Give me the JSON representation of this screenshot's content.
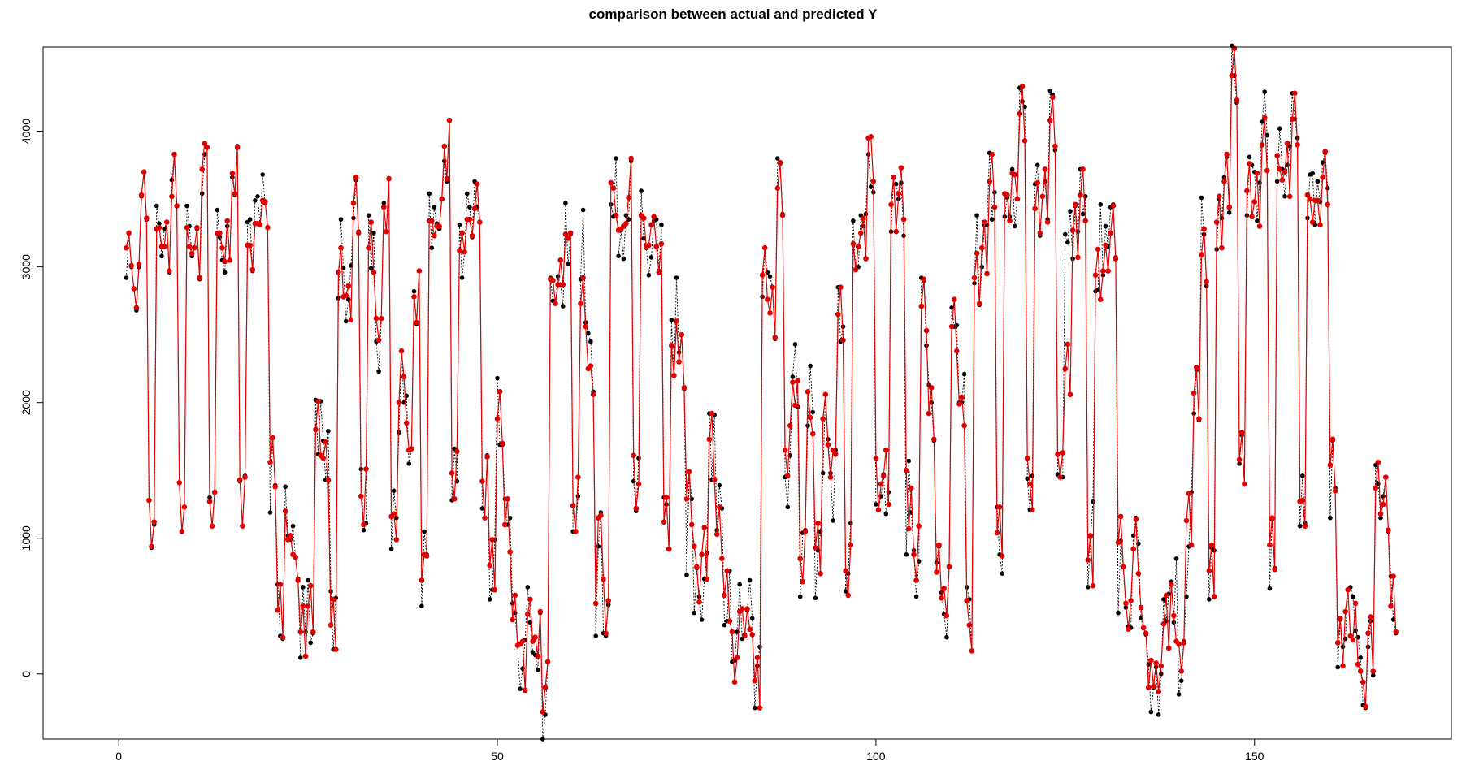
{
  "chart_data": {
    "type": "line",
    "title": "comparison between actual and predicted Y",
    "xlabel": "",
    "ylabel": "",
    "xlim": [
      -10,
      176
    ],
    "ylim": [
      -480,
      4620
    ],
    "x_ticks": [
      0,
      50,
      100,
      150
    ],
    "y_ticks": [
      0,
      1000,
      2000,
      3000,
      4000
    ],
    "grid": false,
    "legend": "none",
    "x_start": 1,
    "points_per_x": 3,
    "series": [
      {
        "style": "actual",
        "color": "#000000",
        "values": [
          2920,
          3250,
          3000,
          2840,
          2680,
          3000,
          3520,
          3700,
          3350,
          1280,
          930,
          1100,
          3450,
          3320,
          3080,
          3280,
          3330,
          2960,
          3640,
          3830,
          3450,
          1410,
          1050,
          1230,
          3450,
          3300,
          3080,
          3140,
          3280,
          2910,
          3540,
          3830,
          3880,
          1300,
          1090,
          1340,
          3420,
          3220,
          3050,
          2960,
          3300,
          3050,
          3660,
          3530,
          3890,
          1420,
          1090,
          1460,
          3330,
          3350,
          2970,
          3490,
          3520,
          3310,
          3680,
          3470,
          3290,
          1190,
          1740,
          1390,
          660,
          280,
          260,
          1380,
          1020,
          990,
          1090,
          860,
          700,
          120,
          640,
          310,
          690,
          230,
          300,
          2020,
          1620,
          2010,
          1720,
          1430,
          1790,
          610,
          180,
          560,
          2770,
          3350,
          2990,
          2600,
          2760,
          3010,
          3360,
          3640,
          3260,
          1510,
          1060,
          1110,
          3380,
          2990,
          3250,
          2450,
          2230,
          2620,
          3470,
          3260,
          3650,
          920,
          1350,
          1150,
          1780,
          2380,
          2000,
          2050,
          1550,
          1660,
          2820,
          2580,
          2970,
          500,
          1050,
          880,
          3540,
          3140,
          3440,
          3320,
          3280,
          3500,
          3780,
          3630,
          4080,
          1280,
          1660,
          1420,
          3310,
          2920,
          3110,
          3540,
          3440,
          3220,
          3630,
          3440,
          3330,
          1220,
          1150,
          1610,
          550,
          620,
          990,
          2180,
          1690,
          1690,
          1290,
          1100,
          1150,
          520,
          450,
          210,
          -110,
          40,
          250,
          640,
          380,
          160,
          140,
          30,
          450,
          -480,
          -300,
          90,
          2920,
          2750,
          2730,
          2930,
          2870,
          2710,
          3470,
          3020,
          3240,
          1050,
          1050,
          1310,
          2910,
          3420,
          2590,
          2510,
          2450,
          2080,
          280,
          940,
          1190,
          300,
          280,
          510,
          3460,
          3370,
          3800,
          3080,
          3270,
          3060,
          3380,
          3350,
          3780,
          1420,
          1200,
          1590,
          3560,
          3210,
          3140,
          2940,
          3070,
          3340,
          3350,
          2970,
          3310,
          1300,
          1250,
          920,
          2610,
          2200,
          2920,
          2370,
          2500,
          2100,
          730,
          1490,
          1290,
          450,
          780,
          570,
          400,
          700,
          890,
          1920,
          1430,
          1910,
          1060,
          1390,
          1220,
          360,
          390,
          760,
          90,
          100,
          310,
          660,
          260,
          290,
          470,
          690,
          410,
          -250,
          60,
          200,
          2780,
          3140,
          2960,
          2930,
          2850,
          2470,
          3800,
          3760,
          3390,
          1450,
          1230,
          1610,
          2190,
          2430,
          1970,
          570,
          1040,
          1060,
          1830,
          2270,
          1930,
          560,
          910,
          1050,
          1480,
          2060,
          1730,
          1480,
          1130,
          1650,
          2850,
          2450,
          2560,
          610,
          740,
          1110,
          3340,
          2980,
          3000,
          3380,
          3300,
          3390,
          3830,
          3590,
          3550,
          1250,
          1210,
          1310,
          1470,
          1180,
          1340,
          3260,
          3660,
          3610,
          3500,
          3620,
          3230,
          880,
          1570,
          1190,
          910,
          570,
          830,
          2920,
          2900,
          2420,
          2130,
          2000,
          1720,
          820,
          940,
          600,
          440,
          270,
          790,
          2700,
          2560,
          2570,
          2000,
          2000,
          2210,
          640,
          550,
          170,
          2880,
          3380,
          2720,
          3000,
          3310,
          3310,
          3840,
          3350,
          3550,
          1230,
          880,
          740,
          3370,
          3510,
          3370,
          3720,
          3300,
          3500,
          4320,
          4220,
          4180,
          1440,
          1210,
          1460,
          3610,
          3750,
          3230,
          3520,
          3630,
          3350,
          4300,
          4270,
          3860,
          1470,
          1450,
          1450,
          3240,
          3180,
          3410,
          3060,
          3450,
          3260,
          3720,
          3390,
          3520,
          640,
          1010,
          1270,
          2820,
          2830,
          3460,
          2940,
          3300,
          3150,
          3440,
          3460,
          3070,
          450,
          980,
          790,
          490,
          350,
          340,
          1020,
          1150,
          960,
          410,
          340,
          290,
          70,
          -280,
          -100,
          50,
          -300,
          0,
          550,
          390,
          590,
          680,
          380,
          850,
          -150,
          -50,
          240,
          570,
          940,
          1340,
          1920,
          2240,
          1870,
          3510,
          3240,
          2860,
          550,
          930,
          910,
          3130,
          3500,
          3360,
          3660,
          3810,
          3400,
          4630,
          4410,
          4210,
          1550,
          1760,
          1400,
          3380,
          3810,
          3750,
          3700,
          3340,
          3620,
          4070,
          4290,
          3970,
          630,
          1140,
          780,
          3630,
          4020,
          3720,
          3520,
          3750,
          3890,
          4280,
          4090,
          3950,
          1090,
          1460,
          1110,
          3360,
          3680,
          3690,
          3310,
          3630,
          3480,
          3770,
          3840,
          3580,
          1150,
          1720,
          1370,
          50,
          400,
          200,
          260,
          620,
          640,
          570,
          320,
          270,
          120,
          -230,
          -250,
          200,
          390,
          -10,
          1540,
          1400,
          1150,
          1310,
          1450,
          1050,
          720,
          400,
          300
        ]
      },
      {
        "style": "predicted",
        "color": "#e00000",
        "values": [
          3140,
          3250,
          3010,
          2840,
          2700,
          3020,
          3530,
          3700,
          3360,
          1280,
          940,
          1120,
          3280,
          3290,
          3150,
          3150,
          3330,
          2970,
          3520,
          3830,
          3450,
          1410,
          1050,
          1230,
          3290,
          3150,
          3100,
          3140,
          3290,
          2920,
          3720,
          3910,
          3880,
          1270,
          1090,
          1340,
          3250,
          3250,
          3140,
          3040,
          3340,
          3050,
          3690,
          3540,
          3880,
          1430,
          1090,
          1450,
          3160,
          3160,
          2980,
          3320,
          3320,
          3310,
          3490,
          3480,
          3290,
          1560,
          1740,
          1380,
          470,
          660,
          270,
          1200,
          990,
          1020,
          880,
          860,
          690,
          310,
          500,
          130,
          500,
          650,
          310,
          1800,
          2010,
          1610,
          1590,
          1710,
          1430,
          360,
          550,
          180,
          2960,
          3140,
          2780,
          2790,
          2860,
          2610,
          3470,
          3660,
          3250,
          1310,
          1100,
          1510,
          3140,
          3330,
          2960,
          2620,
          2460,
          2620,
          3440,
          3260,
          3650,
          1160,
          1180,
          990,
          2000,
          2380,
          2190,
          1850,
          1650,
          1660,
          2780,
          2590,
          2970,
          690,
          880,
          870,
          3340,
          3340,
          3230,
          3300,
          3300,
          3500,
          3890,
          3650,
          4080,
          1480,
          1290,
          1640,
          3120,
          3250,
          3110,
          3350,
          3350,
          3230,
          3430,
          3610,
          3330,
          1420,
          1150,
          1600,
          800,
          990,
          620,
          1880,
          2080,
          1700,
          1100,
          1290,
          900,
          400,
          580,
          210,
          220,
          240,
          -120,
          440,
          550,
          240,
          270,
          130,
          460,
          -280,
          -100,
          90,
          2910,
          2900,
          2730,
          2870,
          3050,
          2870,
          3240,
          3210,
          3250,
          1240,
          1050,
          1450,
          2730,
          2920,
          2560,
          2250,
          2270,
          2060,
          520,
          1150,
          1170,
          700,
          300,
          540,
          3620,
          3580,
          3380,
          3270,
          3280,
          3300,
          3320,
          3510,
          3800,
          1610,
          1220,
          1400,
          3380,
          3360,
          3150,
          3160,
          3310,
          3370,
          3150,
          2960,
          3170,
          1120,
          1300,
          920,
          2420,
          2200,
          2600,
          2300,
          2500,
          2110,
          1290,
          1490,
          1100,
          940,
          790,
          530,
          880,
          1080,
          700,
          1730,
          1920,
          1430,
          1030,
          1230,
          850,
          580,
          760,
          390,
          310,
          -60,
          120,
          460,
          480,
          280,
          480,
          330,
          290,
          -50,
          120,
          -250,
          2940,
          3140,
          2760,
          2660,
          2850,
          2480,
          3580,
          3770,
          3380,
          1650,
          1460,
          1830,
          2150,
          1980,
          2160,
          850,
          680,
          1050,
          2080,
          1890,
          1770,
          930,
          1110,
          740,
          1880,
          2060,
          1690,
          1450,
          1650,
          1620,
          2650,
          2850,
          2460,
          760,
          580,
          950,
          3170,
          2980,
          3150,
          3250,
          3360,
          3060,
          3950,
          3960,
          3630,
          1590,
          1210,
          1400,
          1460,
          1650,
          1250,
          3460,
          3660,
          3260,
          3540,
          3730,
          3350,
          1500,
          1070,
          1370,
          880,
          690,
          1090,
          2710,
          2910,
          2530,
          1920,
          2110,
          1730,
          750,
          950,
          560,
          630,
          430,
          790,
          2560,
          2760,
          2380,
          1990,
          2040,
          1830,
          540,
          360,
          170,
          2920,
          3100,
          2730,
          3140,
          3330,
          2950,
          3630,
          3830,
          3440,
          1040,
          1230,
          870,
          3540,
          3530,
          3340,
          3690,
          3680,
          3500,
          4130,
          4330,
          3930,
          1590,
          1400,
          1210,
          3430,
          3620,
          3250,
          3520,
          3720,
          3330,
          4080,
          4250,
          3890,
          1620,
          1450,
          1630,
          2250,
          2430,
          2060,
          3270,
          3460,
          3070,
          3530,
          3720,
          3340,
          840,
          1020,
          650,
          2940,
          3130,
          2760,
          2970,
          3160,
          2970,
          3250,
          3450,
          3060,
          970,
          1160,
          790,
          520,
          330,
          540,
          920,
          1140,
          740,
          490,
          340,
          300,
          -100,
          100,
          -90,
          80,
          -130,
          60,
          370,
          580,
          190,
          660,
          430,
          240,
          220,
          20,
          230,
          1130,
          1330,
          950,
          2070,
          2260,
          1880,
          3090,
          3280,
          2890,
          760,
          950,
          570,
          3330,
          3520,
          3140,
          3630,
          3830,
          3440,
          4410,
          4610,
          4230,
          1580,
          1780,
          1400,
          3560,
          3760,
          3370,
          3480,
          3690,
          3300,
          3900,
          4100,
          3710,
          950,
          1150,
          770,
          3820,
          3720,
          3640,
          3700,
          3910,
          3520,
          4090,
          4280,
          3900,
          1270,
          1280,
          1090,
          3530,
          3500,
          3330,
          3490,
          3490,
          3310,
          3660,
          3850,
          3460,
          1540,
          1730,
          1350,
          230,
          410,
          60,
          460,
          620,
          280,
          250,
          520,
          70,
          20,
          -60,
          -240,
          300,
          420,
          20,
          1370,
          1560,
          1180,
          1250,
          1450,
          1060,
          500,
          720,
          310
        ]
      }
    ]
  }
}
